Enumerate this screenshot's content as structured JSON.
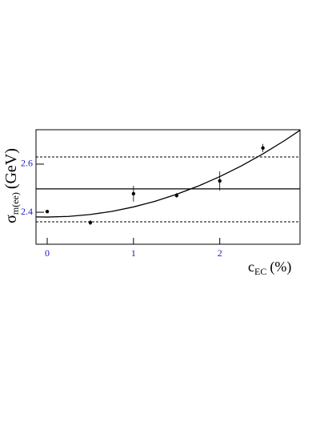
{
  "chart_data": {
    "type": "scatter",
    "x": [
      0,
      0.5,
      1,
      1.5,
      2,
      2.5
    ],
    "values": [
      2.403,
      2.357,
      2.477,
      2.47,
      2.53,
      2.667
    ],
    "errors": [
      0.006,
      0.01,
      0.033,
      0.01,
      0.04,
      0.017
    ],
    "color": "#000000",
    "fit": {
      "x": [
        -0.13,
        0,
        0.25,
        0.5,
        0.75,
        1,
        1.25,
        1.5,
        1.75,
        2,
        2.25,
        2.5,
        2.75,
        2.93
      ],
      "values": [
        2.3807,
        2.38,
        2.3826,
        2.3905,
        2.4036,
        2.422,
        2.4456,
        2.4745,
        2.5086,
        2.548,
        2.5926,
        2.6425,
        2.6976,
        2.7406
      ]
    },
    "hlines": [
      {
        "value": 2.497,
        "style": "solid"
      },
      {
        "value": 2.63,
        "style": "dashed"
      },
      {
        "value": 2.36,
        "style": "dashed"
      }
    ],
    "xlim": [
      -0.13,
      2.93
    ],
    "ylim": [
      2.267,
      2.743
    ],
    "xticks": [
      0,
      1,
      2
    ],
    "yticks": [
      2.4,
      2.6
    ],
    "xlabel": {
      "symbol": "c",
      "sub": "EC",
      "unit": "(%)"
    },
    "ylabel": {
      "symbol": "σ",
      "sub": "m(ee)",
      "unit": "(GeV)"
    }
  }
}
